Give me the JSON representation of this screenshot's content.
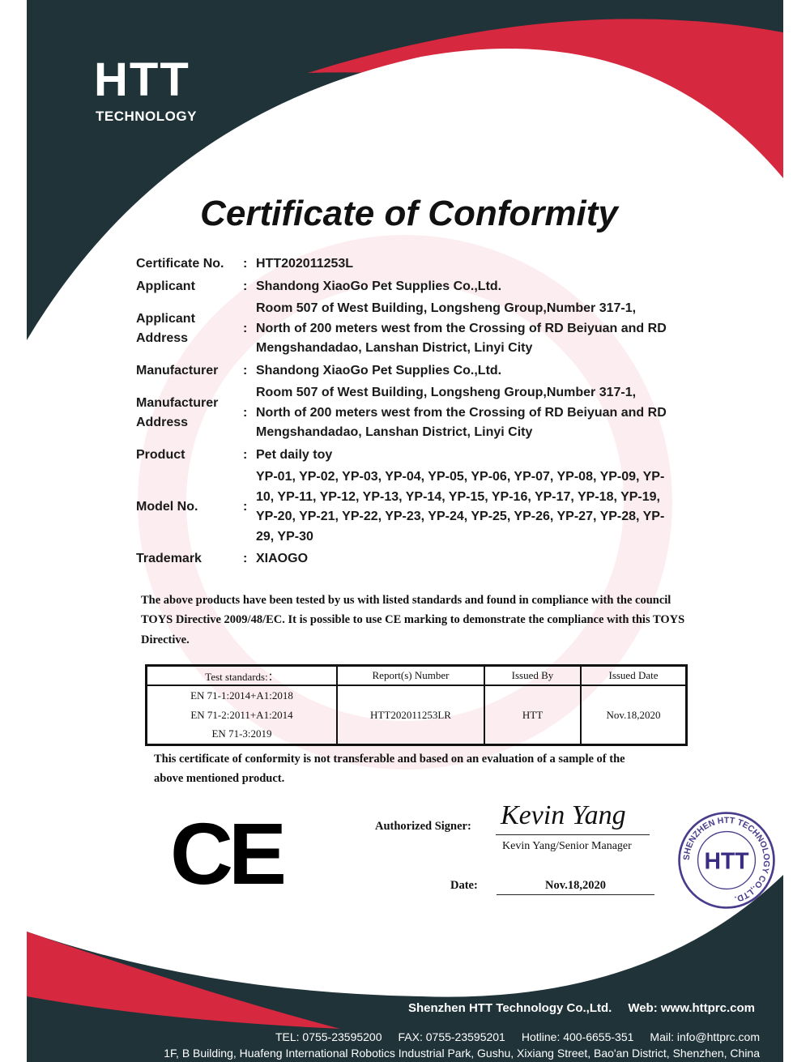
{
  "brand": {
    "name": "HTT",
    "tagline": "TECHNOLOGY",
    "colors": {
      "dark": "#1f3339",
      "red": "#d6283f"
    }
  },
  "title": "Certificate of Conformity",
  "fields": [
    {
      "label": "Certificate No.",
      "value": "HTT202011253L"
    },
    {
      "label": "Applicant",
      "value": "Shandong XiaoGo Pet Supplies Co.,Ltd."
    },
    {
      "label": "Applicant Address",
      "value": "Room 507 of West Building, Longsheng Group,Number 317-1, North of 200 meters west from the Crossing of RD Beiyuan and RD Mengshandadao, Lanshan District, Linyi City"
    },
    {
      "label": "Manufacturer",
      "value": "Shandong XiaoGo Pet Supplies Co.,Ltd."
    },
    {
      "label": "Manufacturer Address",
      "value": "Room 507 of West Building, Longsheng Group,Number 317-1, North of 200 meters west from the Crossing of RD Beiyuan and RD Mengshandadao, Lanshan District, Linyi City"
    },
    {
      "label": "Product",
      "value": "Pet daily toy"
    },
    {
      "label": "Model No.",
      "value": "YP-01, YP-02, YP-03, YP-04, YP-05, YP-06, YP-07, YP-08, YP-09, YP-10, YP-11, YP-12, YP-13, YP-14, YP-15, YP-16, YP-17, YP-18, YP-19, YP-20, YP-21, YP-22, YP-23, YP-24, YP-25, YP-26, YP-27, YP-28, YP-29, YP-30"
    },
    {
      "label": "Trademark",
      "value": "XIAOGO"
    }
  ],
  "statement": "The above products have been tested by us with listed standards and found in compliance with the council TOYS Directive 2009/48/EC. It is possible to use CE marking to demonstrate the compliance with this TOYS Directive.",
  "table": {
    "headers": [
      "Test standards:：",
      "Report(s) Number",
      "Issued By",
      "Issued Date"
    ],
    "standards": [
      "EN 71-1:2014+A1:2018",
      "EN 71-2:2011+A1:2014",
      "EN 71-3:2019"
    ],
    "report_number": "HTT202011253LR",
    "issued_by": "HTT",
    "issued_date": "Nov.18,2020"
  },
  "note": "This certificate of conformity is not transferable and based on an evaluation of a sample of the above mentioned product.",
  "ce_mark": "CE",
  "signature": {
    "label": "Authorized Signer:",
    "handwriting": "Kevin Yang",
    "name": "Kevin Yang/Senior Manager"
  },
  "date": {
    "label": "Date:",
    "value": "Nov.18,2020"
  },
  "stamp": {
    "center": "HTT",
    "ring": "SHENZHEN HTT TECHNOLOGY CO.,LTD."
  },
  "footer": {
    "company": "Shenzhen HTT Technology Co.,Ltd.",
    "web": "Web: www.httprc.com",
    "tel": "TEL: 0755-23595200",
    "fax": "FAX: 0755-23595201",
    "hotline": "Hotline: 400-6655-351",
    "mail": "Mail: info@httprc.com",
    "address": "1F, B Building, Huafeng International Robotics Industrial Park, Gushu, Xixiang Street, Bao'an District, Shenzhen, China"
  }
}
